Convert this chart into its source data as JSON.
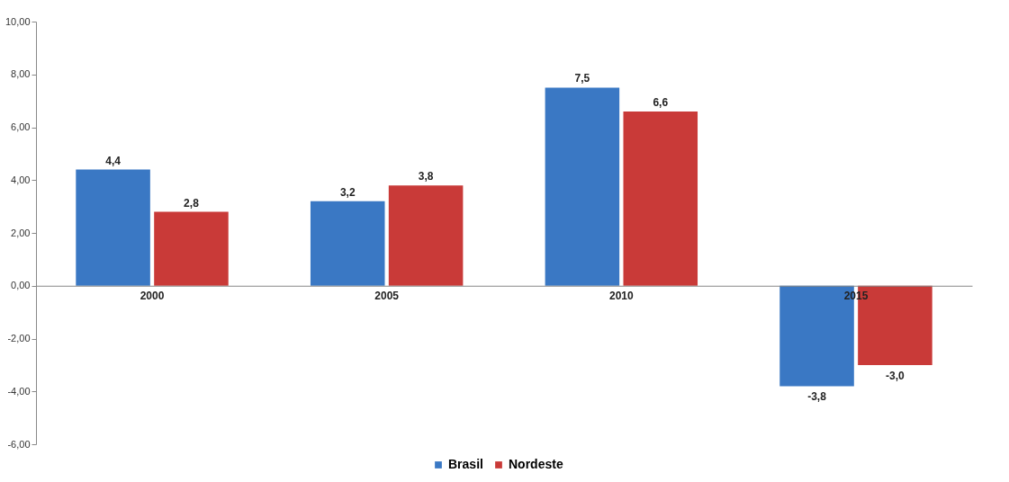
{
  "chart_data": {
    "type": "bar",
    "categories": [
      "2000",
      "2005",
      "2010",
      "2015"
    ],
    "series": [
      {
        "name": "Brasil",
        "color": "#3a78c4",
        "values": [
          4.4,
          3.2,
          7.5,
          -3.8
        ],
        "value_labels": [
          "4,4",
          "3,2",
          "7,5",
          "-3,8"
        ]
      },
      {
        "name": "Nordeste",
        "color": "#c93a38",
        "values": [
          2.8,
          3.8,
          6.6,
          -3.0
        ],
        "value_labels": [
          "2,8",
          "3,8",
          "6,6",
          "-3,0"
        ]
      }
    ],
    "ylim": [
      -6,
      10
    ],
    "yticks": [
      {
        "value": -6,
        "label": "-6,00"
      },
      {
        "value": -4,
        "label": "-4,00"
      },
      {
        "value": -2,
        "label": "-2,00"
      },
      {
        "value": 0,
        "label": "0,00"
      },
      {
        "value": 2,
        "label": "2,00"
      },
      {
        "value": 4,
        "label": "4,00"
      },
      {
        "value": 6,
        "label": "6,00"
      },
      {
        "value": 8,
        "label": "8,00"
      },
      {
        "value": 10,
        "label": "10,00"
      }
    ],
    "grid": false,
    "legend": "bottom"
  }
}
